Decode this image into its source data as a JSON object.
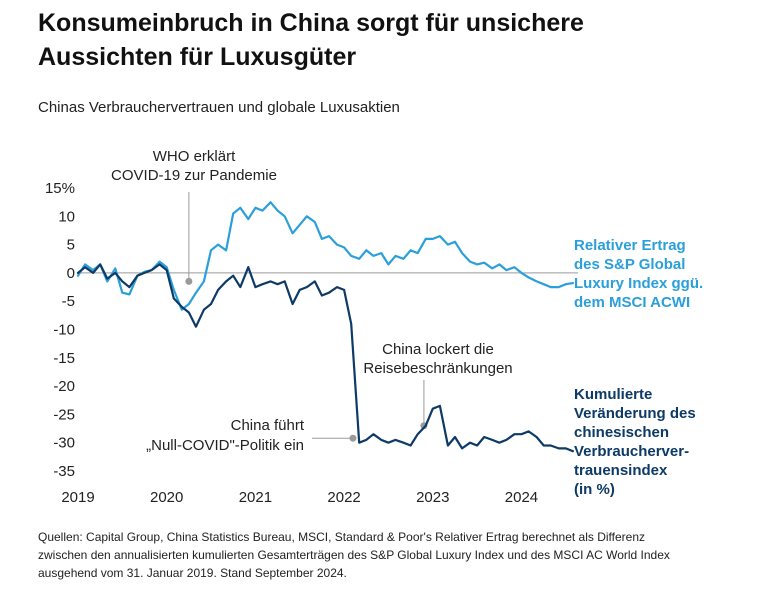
{
  "header": {
    "title_line1": "Konsumeinbruch in China sorgt für unsichere",
    "title_line2": "Aussichten für Luxusgüter"
  },
  "footer": {
    "source_line1": "Quellen: Capital Group, China Statistics Bureau, MSCI, Standard & Poor's Relativer Ertrag berechnet als Differenz",
    "source_line2": "zwischen den annualisierten kumulierten Gesamterträgen des S&P Global Luxury Index und des MSCI AC World Index",
    "source_line3": "ausgehend vom 31. Januar 2019. Stand September 2024."
  },
  "colors": {
    "light_series": "#2b9fd9",
    "dark_series": "#0d3a66",
    "annotation": "#9a9a9a",
    "zero_line": "#9a9a9a"
  },
  "chart_data": {
    "type": "line",
    "title": "Chinas Verbrauchervertrauen und globale Luxusaktien",
    "xlabel": "",
    "ylabel": "",
    "xlim": [
      2019.0,
      2024.75
    ],
    "ylim": [
      -35,
      15
    ],
    "yticks": [
      15,
      10,
      5,
      0,
      -5,
      -10,
      -15,
      -20,
      -25,
      -30,
      -35
    ],
    "ytick_labels": [
      "15%",
      "10",
      "5",
      "0",
      "-5",
      "-10",
      "-15",
      "-20",
      "-25",
      "-30",
      "-35"
    ],
    "xticks": [
      2019,
      2020,
      2021,
      2022,
      2023,
      2024
    ],
    "xtick_labels": [
      "2019",
      "2020",
      "2021",
      "2022",
      "2023",
      "2024"
    ],
    "grid": false,
    "series": [
      {
        "name": "Relativer Ertrag des S&P Global Luxury Index ggü. dem MSCI ACWI",
        "label_lines": [
          "Relativer Ertrag",
          "des S&P Global",
          "Luxury Index ggü.",
          "dem MSCI ACWI"
        ],
        "color": "#2b9fd9",
        "x": [
          2019.0,
          2019.08,
          2019.17,
          2019.25,
          2019.33,
          2019.42,
          2019.5,
          2019.58,
          2019.67,
          2019.75,
          2019.83,
          2019.92,
          2020.0,
          2020.08,
          2020.17,
          2020.25,
          2020.33,
          2020.42,
          2020.5,
          2020.58,
          2020.67,
          2020.75,
          2020.83,
          2020.92,
          2021.0,
          2021.08,
          2021.17,
          2021.25,
          2021.33,
          2021.42,
          2021.5,
          2021.58,
          2021.67,
          2021.75,
          2021.83,
          2021.92,
          2022.0,
          2022.08,
          2022.17,
          2022.25,
          2022.33,
          2022.42,
          2022.5,
          2022.58,
          2022.67,
          2022.75,
          2022.83,
          2022.92,
          2023.0,
          2023.08,
          2023.17,
          2023.25,
          2023.33,
          2023.42,
          2023.5,
          2023.58,
          2023.67,
          2023.75,
          2023.83,
          2023.92,
          2024.0,
          2024.08,
          2024.17,
          2024.25,
          2024.33,
          2024.42,
          2024.5,
          2024.58
        ],
        "y": [
          -0.5,
          1.5,
          0.5,
          1.5,
          -1.5,
          0.8,
          -3.5,
          -3.8,
          -0.5,
          0.2,
          0.5,
          2.0,
          1.0,
          -3.0,
          -6.5,
          -5.5,
          -3.5,
          -1.5,
          4.0,
          5.0,
          4.0,
          10.5,
          11.5,
          9.5,
          11.5,
          11.0,
          12.5,
          11.0,
          10.0,
          7.0,
          8.5,
          10.0,
          9.0,
          6.0,
          6.5,
          5.0,
          4.5,
          3.0,
          2.5,
          4.0,
          3.0,
          3.5,
          1.5,
          3.0,
          2.5,
          4.0,
          3.5,
          6.0,
          6.0,
          6.5,
          5.0,
          5.5,
          3.5,
          2.0,
          1.5,
          1.8,
          0.8,
          1.5,
          0.5,
          1.0,
          0.0,
          -0.8,
          -1.5,
          -2.0,
          -2.5,
          -2.5,
          -2.0,
          -1.8
        ]
      },
      {
        "name": "Kumulierte Veränderung des chinesischen Verbrauchervertrauensindex (in %)",
        "label_lines": [
          "Kumulierte",
          "Veränderung des",
          "chinesischen",
          "Verbraucherver-",
          "trauensindex",
          "(in %)"
        ],
        "color": "#0d3a66",
        "x": [
          2019.0,
          2019.08,
          2019.17,
          2019.25,
          2019.33,
          2019.42,
          2019.5,
          2019.58,
          2019.67,
          2019.75,
          2019.83,
          2019.92,
          2020.0,
          2020.08,
          2020.17,
          2020.25,
          2020.33,
          2020.42,
          2020.5,
          2020.58,
          2020.67,
          2020.75,
          2020.83,
          2020.92,
          2021.0,
          2021.08,
          2021.17,
          2021.25,
          2021.33,
          2021.42,
          2021.5,
          2021.58,
          2021.67,
          2021.75,
          2021.83,
          2021.92,
          2022.0,
          2022.08,
          2022.17,
          2022.25,
          2022.33,
          2022.42,
          2022.5,
          2022.58,
          2022.67,
          2022.75,
          2022.83,
          2022.92,
          2023.0,
          2023.08,
          2023.17,
          2023.25,
          2023.33,
          2023.42,
          2023.5,
          2023.58,
          2023.67,
          2023.75,
          2023.83,
          2023.92,
          2024.0,
          2024.08,
          2024.17,
          2024.25,
          2024.33,
          2024.42,
          2024.5,
          2024.58
        ],
        "y": [
          0.0,
          1.0,
          0.0,
          1.5,
          -1.0,
          0.0,
          -1.5,
          -2.5,
          -0.5,
          0.0,
          0.5,
          1.5,
          0.5,
          -4.5,
          -6.0,
          -7.0,
          -9.5,
          -6.5,
          -5.5,
          -3.0,
          -1.5,
          -0.5,
          -2.5,
          1.0,
          -2.5,
          -2.0,
          -1.5,
          -2.0,
          -1.5,
          -5.5,
          -3.0,
          -2.5,
          -1.5,
          -4.0,
          -3.5,
          -2.5,
          -3.0,
          -9.0,
          -30.0,
          -29.5,
          -28.5,
          -29.5,
          -30.0,
          -29.5,
          -30.0,
          -30.5,
          -28.5,
          -27.0,
          -24.0,
          -23.5,
          -30.5,
          -29.0,
          -31.0,
          -30.0,
          -30.5,
          -29.0,
          -29.5,
          -30.0,
          -29.5,
          -28.5,
          -28.5,
          -28.0,
          -29.0,
          -30.5,
          -30.5,
          -31.0,
          -31.0,
          -31.5
        ]
      }
    ],
    "annotations": [
      {
        "name": "who-pandemic",
        "lines": [
          "WHO erklärt",
          "COVID-19 zur Pandemie"
        ],
        "x": 2020.25,
        "y": -1.5
      },
      {
        "name": "null-covid",
        "lines": [
          "China führt",
          "„Null-COVID\"-Politik ein"
        ],
        "x": 2022.1,
        "y": -28.5
      },
      {
        "name": "reopening",
        "lines": [
          "China lockert die",
          "Reisebeschränkungen"
        ],
        "x": 2022.9,
        "y": -27.0
      }
    ]
  }
}
